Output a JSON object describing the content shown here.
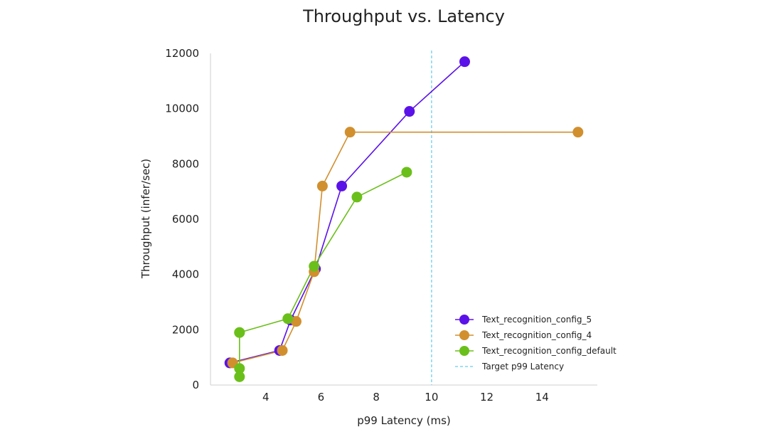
{
  "chart_data": {
    "type": "line",
    "title": "Throughput vs. Latency",
    "xlabel": "p99 Latency (ms)",
    "ylabel": "Throughput (infer/sec)",
    "xlim": [
      2,
      16
    ],
    "ylim": [
      0,
      12000
    ],
    "x_ticks": [
      4,
      6,
      8,
      10,
      12,
      14
    ],
    "y_ticks": [
      0,
      2000,
      4000,
      6000,
      8000,
      10000,
      12000
    ],
    "grid": false,
    "legend_position": "bottom-right",
    "series": [
      {
        "name": "Text_recognition_config_5",
        "color": "#5b12e8",
        "x": [
          2.7,
          4.5,
          4.9,
          5.8,
          6.75,
          9.2,
          11.2
        ],
        "y": [
          800,
          1250,
          2350,
          4200,
          7200,
          9900,
          11700
        ]
      },
      {
        "name": "Text_recognition_config_4",
        "color": "#d18f2e",
        "x": [
          2.8,
          4.6,
          5.1,
          5.75,
          6.05,
          7.05,
          15.3
        ],
        "y": [
          800,
          1250,
          2300,
          4100,
          7200,
          9150,
          9150
        ]
      },
      {
        "name": "Text_recognition_config_default",
        "color": "#6bbf1a",
        "x": [
          3.05,
          3.05,
          3.05,
          3.05,
          4.8,
          5.75,
          7.3,
          9.1
        ],
        "y": [
          300,
          600,
          1900,
          1900,
          2400,
          4300,
          6800,
          7700
        ]
      }
    ],
    "reference_lines": [
      {
        "name": "Target p99 Latency",
        "orientation": "vertical",
        "x": 10,
        "color": "#7fd6f0",
        "style": "dashed"
      }
    ]
  }
}
